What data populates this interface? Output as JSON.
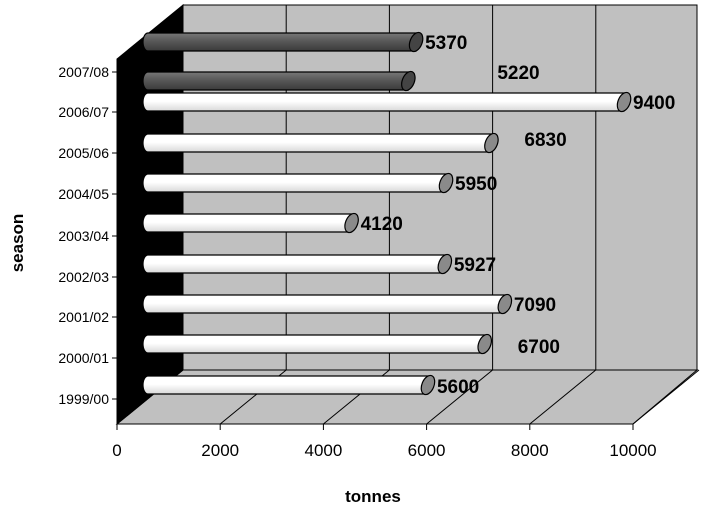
{
  "chart_data": {
    "type": "bar",
    "orientation": "horizontal",
    "style": "3d-cylinder",
    "xlabel": "tonnes",
    "ylabel": "season",
    "xlim": [
      0,
      10000
    ],
    "xticks": [
      "0",
      "2000",
      "4000",
      "6000",
      "8000",
      "10000"
    ],
    "grid": "vertical",
    "legend": "none",
    "colors": {
      "back_wall": "#c0c0c0",
      "floor": "#c0c0c0",
      "side_wall": "#000000",
      "bar_light": "#ffffff",
      "bar_dark": "#555555",
      "bar_cap": "#8a8a8a"
    },
    "bars": [
      {
        "category": "1999/00",
        "value": 5600,
        "label": "5600",
        "shade": "light"
      },
      {
        "category": "2000/01",
        "value": 6700,
        "label": "6700",
        "shade": "light"
      },
      {
        "category": "2001/02",
        "value": 7090,
        "label": "7090",
        "shade": "light"
      },
      {
        "category": "2002/03",
        "value": 5927,
        "label": "5927",
        "shade": "light"
      },
      {
        "category": "2003/04",
        "value": 4120,
        "label": "4120",
        "shade": "light"
      },
      {
        "category": "2004/05",
        "value": 5950,
        "label": "5950",
        "shade": "light"
      },
      {
        "category": "2005/06",
        "value": 6830,
        "label": "6830",
        "shade": "light"
      },
      {
        "category": "2006/07",
        "value": 9400,
        "label": "9400",
        "shade": "light"
      },
      {
        "category": "2007/08",
        "value": 5220,
        "label": "5220",
        "shade": "dark"
      },
      {
        "category": "2007/08",
        "value": 5370,
        "label": "5370",
        "shade": "dark"
      }
    ]
  }
}
